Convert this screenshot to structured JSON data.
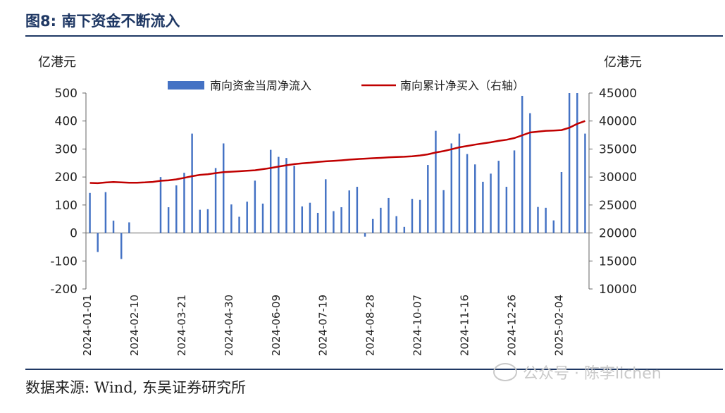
{
  "header": {
    "title": "图8:  南下资金不断流入"
  },
  "footer": {
    "source": "数据来源:  Wind,  东吴证券研究所"
  },
  "watermark": {
    "icon": "wechat-icon",
    "text": "公众号 · 陈李lichen"
  },
  "chart_data": {
    "type": "bar",
    "title": "",
    "y_left_label": "亿港元",
    "y_right_label": "亿港元",
    "ylim_left": [
      -200,
      500
    ],
    "ylim_right": [
      10000,
      45000
    ],
    "yticks_left": [
      "500",
      "400",
      "300",
      "200",
      "100",
      "0",
      "-100",
      "-200"
    ],
    "yticks_right": [
      "45000",
      "40000",
      "35000",
      "30000",
      "25000",
      "20000",
      "15000",
      "10000"
    ],
    "xtick_labels": [
      "2024-01-01",
      "2024-02-10",
      "2024-03-21",
      "2024-04-30",
      "2024-06-09",
      "2024-07-19",
      "2024-08-28",
      "2024-10-07",
      "2024-11-16",
      "2024-12-26",
      "2025-02-04"
    ],
    "grid": false,
    "legend_position": "top",
    "colors": {
      "bars": "#4472c4",
      "line": "#c00000",
      "axis": "#666666"
    },
    "series": [
      {
        "name": "南向资金当周净流入",
        "type": "bar",
        "values": [
          143,
          -68,
          146,
          44,
          -93,
          38,
          0,
          0,
          0,
          200,
          92,
          170,
          215,
          355,
          83,
          85,
          232,
          320,
          102,
          58,
          112,
          187,
          105,
          297,
          272,
          268,
          240,
          95,
          108,
          72,
          192,
          78,
          92,
          152,
          165,
          -13,
          50,
          90,
          125,
          60,
          22,
          122,
          118,
          243,
          365,
          153,
          320,
          355,
          282,
          245,
          183,
          212,
          258,
          165,
          295,
          490,
          428,
          93,
          90,
          45,
          218,
          500,
          500,
          355
        ]
      },
      {
        "name": "南向累计净买入（右轴）",
        "type": "line",
        "axis": "right",
        "values": [
          28950,
          28900,
          29020,
          29100,
          29050,
          28980,
          28990,
          29030,
          29130,
          29330,
          29400,
          29580,
          29850,
          30150,
          30380,
          30500,
          30700,
          30880,
          30950,
          31020,
          31120,
          31200,
          31400,
          31600,
          31850,
          32100,
          32300,
          32450,
          32550,
          32700,
          32800,
          32880,
          32980,
          33100,
          33200,
          33280,
          33350,
          33420,
          33500,
          33580,
          33620,
          33700,
          33850,
          34050,
          34380,
          34620,
          34950,
          35300,
          35550,
          35780,
          36000,
          36200,
          36450,
          36650,
          36950,
          37450,
          37950,
          38100,
          38250,
          38300,
          38380,
          38800,
          39500,
          40000
        ]
      }
    ]
  }
}
